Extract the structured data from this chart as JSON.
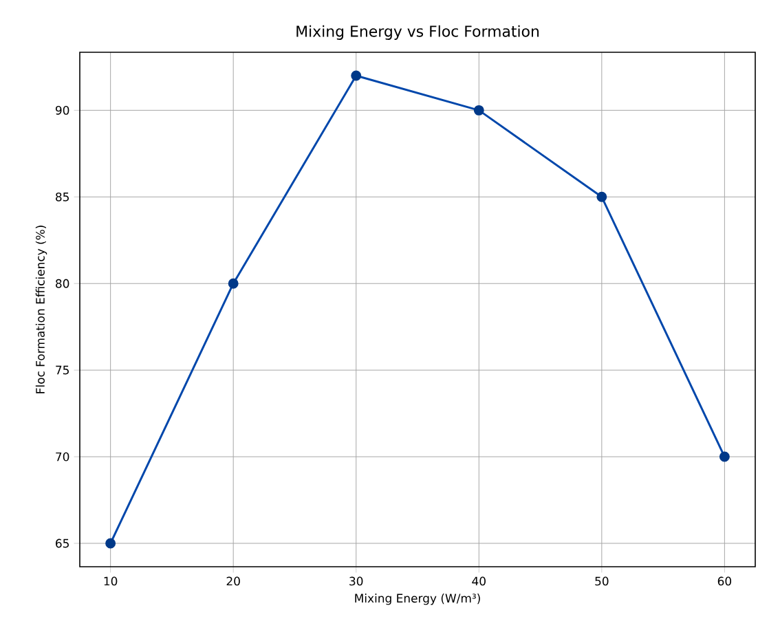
{
  "chart_data": {
    "type": "line",
    "title": "Mixing Energy vs Floc Formation",
    "xlabel": "Mixing Energy (W/m³)",
    "ylabel": "Floc Formation Efficiency (%)",
    "x": [
      10,
      20,
      30,
      40,
      50,
      60
    ],
    "series": [
      {
        "color": "#0047ab",
        "values": [
          65,
          80,
          92,
          90,
          85,
          70
        ]
      }
    ],
    "xlim": [
      7.5,
      62.5
    ],
    "ylim": [
      63.65,
      93.35
    ],
    "xticks": [
      10,
      20,
      30,
      40,
      50,
      60
    ],
    "yticks": [
      65,
      70,
      75,
      80,
      85,
      90
    ],
    "grid": true,
    "marker": "circle",
    "line_style": "solid"
  }
}
